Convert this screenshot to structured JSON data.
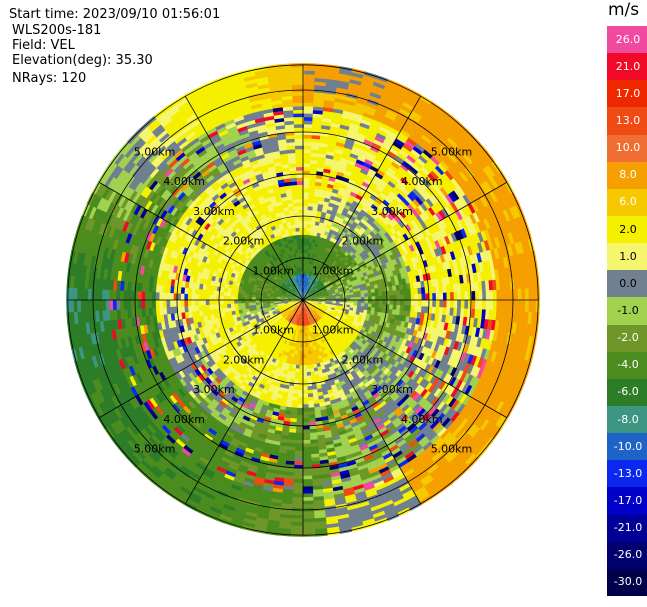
{
  "info": {
    "start_time": "Start time: 2023/09/10 01:56:01",
    "station": "WLS200s-181",
    "field": "Field: VEL",
    "elevation": "Elevation(deg): 35.30",
    "nrays": "NRays: 120"
  },
  "colorbar": {
    "unit": "m/s",
    "levels": [
      {
        "label": "26.0",
        "color": "#f04ba0"
      },
      {
        "label": "21.0",
        "color": "#f00a28"
      },
      {
        "label": "17.0",
        "color": "#f02800"
      },
      {
        "label": "13.0",
        "color": "#f04b14"
      },
      {
        "label": "10.0",
        "color": "#f06e32"
      },
      {
        "label": "8.0",
        "color": "#f5a000"
      },
      {
        "label": "6.0",
        "color": "#f5c800"
      },
      {
        "label": "2.0",
        "color": "#f5f000"
      },
      {
        "label": "1.0",
        "color": "#f5f56e"
      },
      {
        "label": "0.0",
        "color": "#708090"
      },
      {
        "label": "-1.0",
        "color": "#a0d250"
      },
      {
        "label": "-2.0",
        "color": "#6e9628"
      },
      {
        "label": "-4.0",
        "color": "#4b8c1e"
      },
      {
        "label": "-6.0",
        "color": "#2d7d28"
      },
      {
        "label": "-8.0",
        "color": "#3c9682"
      },
      {
        "label": "-10.0",
        "color": "#1e64c8"
      },
      {
        "label": "-13.0",
        "color": "#0a28f0"
      },
      {
        "label": "-17.0",
        "color": "#0000c8"
      },
      {
        "label": "-21.0",
        "color": "#000096"
      },
      {
        "label": "-26.0",
        "color": "#00006e"
      },
      {
        "label": "-30.0",
        "color": "#00004b"
      }
    ]
  },
  "chart_data": {
    "type": "heatmap",
    "projection": "polar PPI",
    "field": "VEL",
    "units": "m/s",
    "range_rings_km": [
      1,
      2,
      3,
      4,
      5
    ],
    "ring_labels": [
      "1.00km",
      "2.00km",
      "3.00km",
      "4.00km",
      "5.00km"
    ],
    "max_range_km": 5.6,
    "nrays": 120,
    "elevation_deg": 35.3,
    "pattern_note": "negative velocities toward north, positive toward south near center; positive outer east/southeast, negative outer west",
    "approx_values_by_ring": [
      {
        "range_km": [
          0,
          0.6
        ],
        "north": -10,
        "south": 17,
        "east": -1,
        "west": -1
      },
      {
        "range_km": [
          0.6,
          1.5
        ],
        "north": -4,
        "south": 8,
        "east": 0,
        "west": -2
      },
      {
        "range_km": [
          1.5,
          2.5
        ],
        "north": 2,
        "south": 2,
        "east": -2,
        "west": 2
      },
      {
        "range_km": [
          2.5,
          3.5
        ],
        "north": 2,
        "south": -2,
        "east": 2,
        "west": 2
      },
      {
        "range_km": [
          3.5,
          4.6
        ],
        "north": 2,
        "south": -2,
        "east": 2,
        "west": -4
      },
      {
        "range_km": [
          4.6,
          5.6
        ],
        "north": 8,
        "south": -2,
        "east": 8,
        "west": -6
      }
    ]
  }
}
